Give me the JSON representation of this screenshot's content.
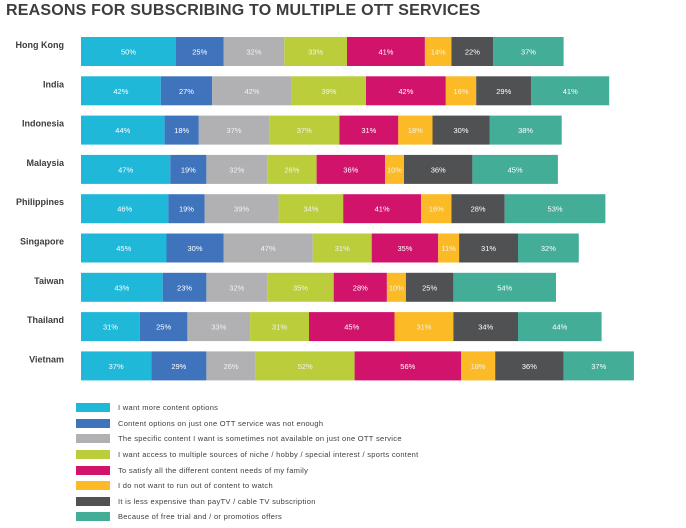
{
  "chart_data": {
    "type": "bar",
    "orientation": "horizontal",
    "stacked": true,
    "title": "REASONS FOR SUBSCRIBING TO MULTIPLE OTT SERVICES",
    "xlabel": "",
    "ylabel": "",
    "grid": false,
    "legend_position": "bottom-left",
    "value_suffix": "%",
    "categories": [
      "Hong Kong",
      "India",
      "Indonesia",
      "Malaysia",
      "Philippines",
      "Singapore",
      "Taiwan",
      "Thailand",
      "Vietnam"
    ],
    "series": [
      {
        "name": "I want more content options",
        "color": "#1fb8d8",
        "values": [
          50,
          42,
          44,
          47,
          46,
          45,
          43,
          31,
          37
        ]
      },
      {
        "name": "Content options on just one OTT service was not enough",
        "color": "#3f74bd",
        "values": [
          25,
          27,
          18,
          19,
          19,
          30,
          23,
          25,
          29
        ]
      },
      {
        "name": "The specific content I want is sometimes not available on just one OTT service",
        "color": "#b1b1b3",
        "values": [
          32,
          42,
          37,
          32,
          39,
          47,
          32,
          33,
          26
        ]
      },
      {
        "name": "I want access to multiple sources of niche / hobby / special interest / sports content",
        "color": "#bccd3c",
        "values": [
          33,
          39,
          37,
          26,
          34,
          31,
          35,
          31,
          52
        ]
      },
      {
        "name": "To satisfy all the different content needs of my family",
        "color": "#d1136c",
        "values": [
          41,
          42,
          31,
          36,
          41,
          35,
          28,
          45,
          56
        ]
      },
      {
        "name": "I do not want to run out of content to watch",
        "color": "#fbba26",
        "values": [
          14,
          16,
          18,
          10,
          16,
          11,
          10,
          31,
          18
        ]
      },
      {
        "name": "It is less expensive than payTV / cable TV subscription",
        "color": "#4f5153",
        "values": [
          22,
          29,
          30,
          36,
          28,
          31,
          25,
          34,
          36
        ]
      },
      {
        "name": "Because of free trial and / or promotios offers",
        "color": "#44ad98",
        "values": [
          37,
          41,
          38,
          45,
          53,
          32,
          54,
          44,
          37
        ]
      }
    ]
  }
}
